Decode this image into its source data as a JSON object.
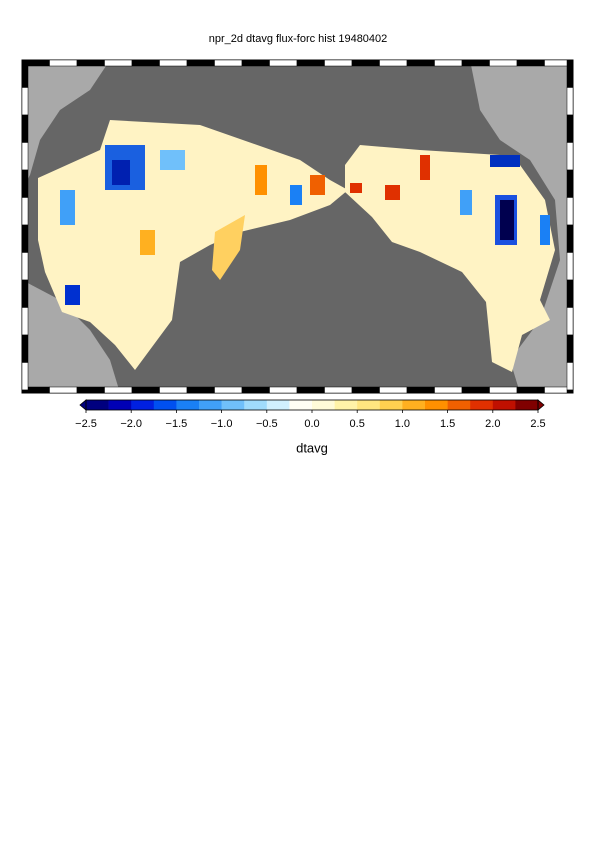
{
  "title": "npr_2d dtavg flux-forc hist 19480402",
  "colorbar": {
    "label": "dtavg",
    "lim": [
      -2.5,
      2.5
    ],
    "colors": [
      "#00007f",
      "#0000b4",
      "#0020e0",
      "#0050f0",
      "#1a80f5",
      "#40a0f8",
      "#70c0fa",
      "#a0dcfc",
      "#d0f0fe",
      "#fffef4",
      "#fffbd8",
      "#fff3a8",
      "#ffe680",
      "#ffd050",
      "#ffb020",
      "#ff9000",
      "#f06000",
      "#e03000",
      "#c01000",
      "#800000"
    ],
    "ticks": [
      {
        "value": -2.5,
        "label": "−2.5"
      },
      {
        "value": -2.0,
        "label": "−2.0"
      },
      {
        "value": -1.5,
        "label": "−1.5"
      },
      {
        "value": -1.0,
        "label": "−1.0"
      },
      {
        "value": -0.5,
        "label": "−0.5"
      },
      {
        "value": 0,
        "label": "0.0"
      },
      0.5,
      {
        "value": 1.0,
        "label": "1.0"
      },
      1.5,
      {
        "value": 2.0,
        "label": "2.0"
      },
      2.5
    ]
  }
}
